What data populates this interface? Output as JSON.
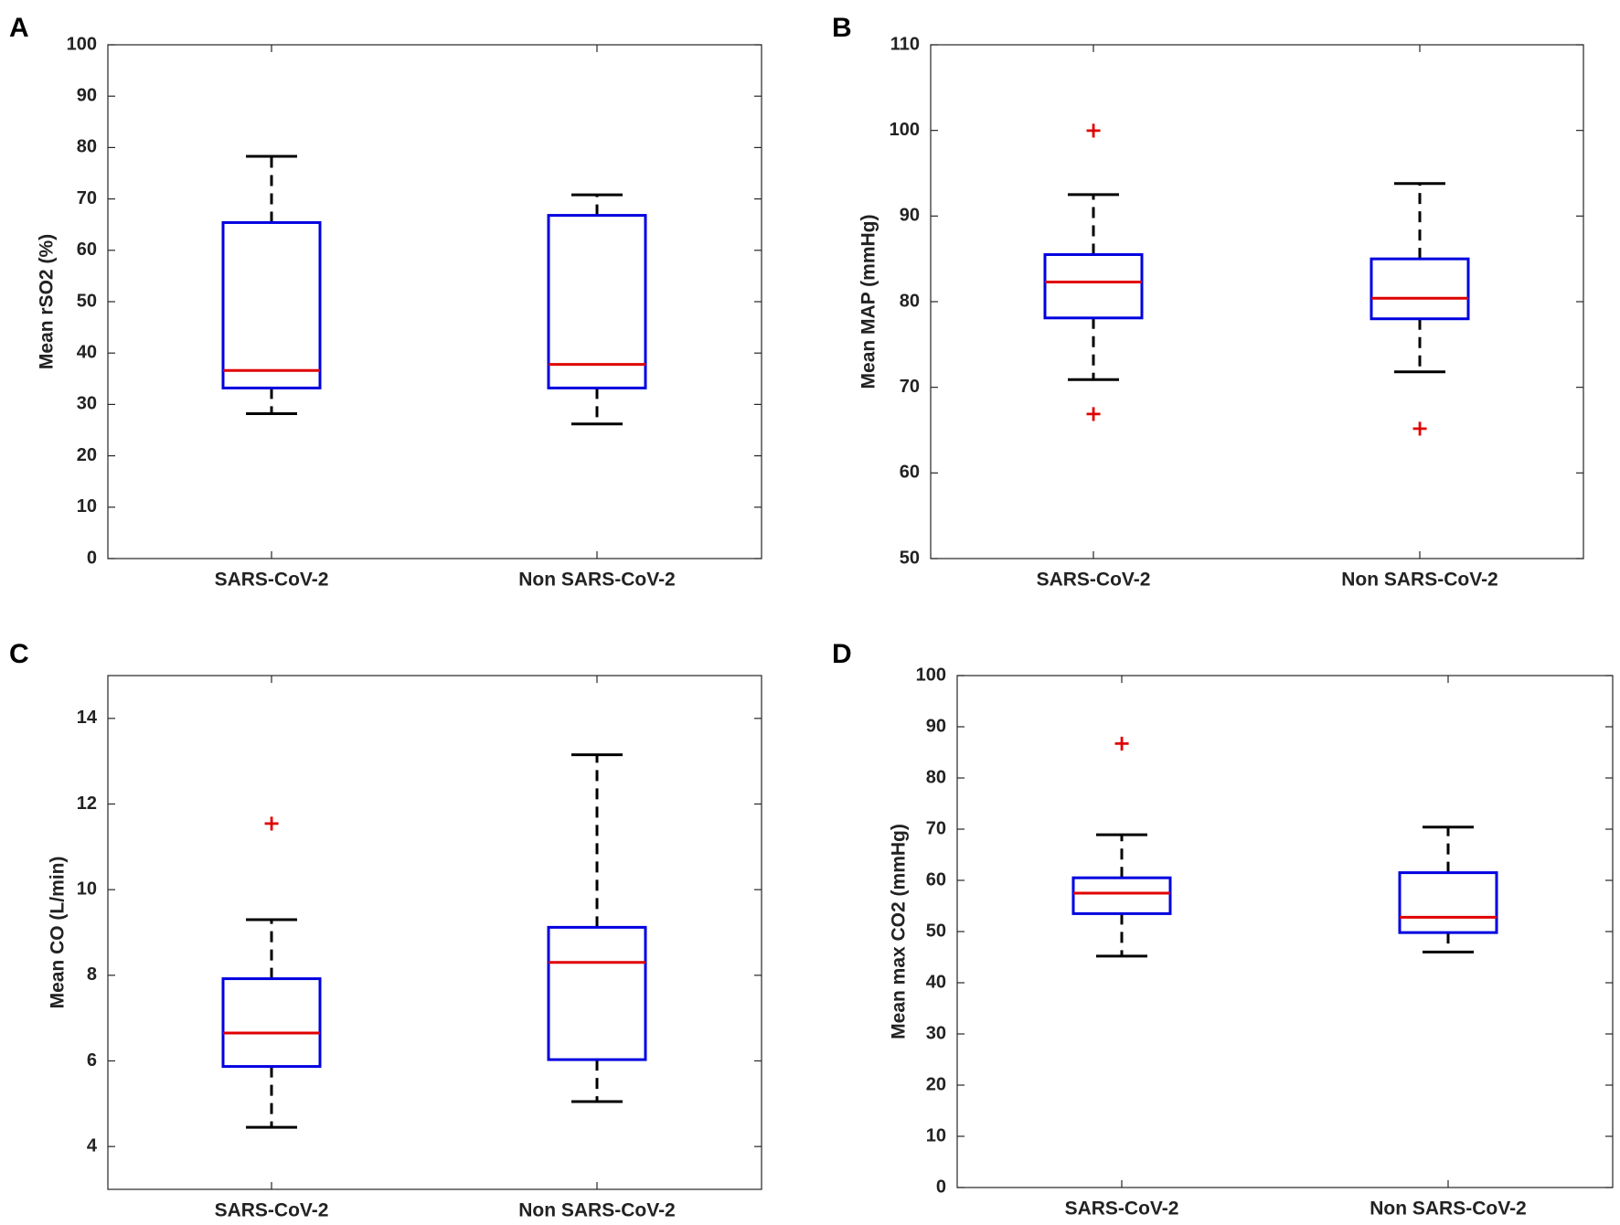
{
  "chart_data": [
    {
      "type": "box",
      "panel": "A",
      "ylabel": "Mean rSO2 (%)",
      "ylim": [
        0,
        100
      ],
      "yticks": [
        0,
        10,
        20,
        30,
        40,
        50,
        60,
        70,
        80,
        90,
        100
      ],
      "categories": [
        "SARS-CoV-2",
        "Non SARS-CoV-2"
      ],
      "boxes": [
        {
          "whisker_low": 28.2,
          "q1": 33.2,
          "median": 36.6,
          "q3": 65.4,
          "whisker_high": 78.3,
          "outliers": []
        },
        {
          "whisker_low": 26.2,
          "q1": 33.2,
          "median": 37.8,
          "q3": 66.8,
          "whisker_high": 70.8,
          "outliers": []
        }
      ]
    },
    {
      "type": "box",
      "panel": "B",
      "ylabel": "Mean MAP (mmHg)",
      "ylim": [
        50,
        110
      ],
      "yticks": [
        50,
        60,
        70,
        80,
        90,
        100,
        110
      ],
      "categories": [
        "SARS-CoV-2",
        "Non SARS-CoV-2"
      ],
      "boxes": [
        {
          "whisker_low": 70.9,
          "q1": 78.1,
          "median": 82.3,
          "q3": 85.5,
          "whisker_high": 92.5,
          "outliers": [
            100,
            66.9
          ]
        },
        {
          "whisker_low": 71.8,
          "q1": 78.0,
          "median": 80.4,
          "q3": 85.0,
          "whisker_high": 93.8,
          "outliers": [
            65.2
          ]
        }
      ]
    },
    {
      "type": "box",
      "panel": "C",
      "ylabel": "Mean CO (L/min)",
      "ylim": [
        3,
        15
      ],
      "yticks": [
        4,
        6,
        8,
        10,
        12,
        14
      ],
      "categories": [
        "SARS-CoV-2",
        "Non SARS-CoV-2"
      ],
      "boxes": [
        {
          "whisker_low": 4.45,
          "q1": 5.87,
          "median": 6.65,
          "q3": 7.92,
          "whisker_high": 9.3,
          "outliers": [
            11.55
          ]
        },
        {
          "whisker_low": 5.05,
          "q1": 6.03,
          "median": 8.3,
          "q3": 9.12,
          "whisker_high": 13.15,
          "outliers": []
        }
      ]
    },
    {
      "type": "box",
      "panel": "D",
      "ylabel": "Mean max CO2 (mmHg)",
      "ylim": [
        0,
        100
      ],
      "yticks": [
        0,
        10,
        20,
        30,
        40,
        50,
        60,
        70,
        80,
        90,
        100
      ],
      "categories": [
        "SARS-CoV-2",
        "Non SARS-CoV-2"
      ],
      "boxes": [
        {
          "whisker_low": 45.2,
          "q1": 53.5,
          "median": 57.5,
          "q3": 60.5,
          "whisker_high": 68.9,
          "outliers": [
            86.8
          ]
        },
        {
          "whisker_low": 46.0,
          "q1": 49.8,
          "median": 52.8,
          "q3": 61.5,
          "whisker_high": 70.4,
          "outliers": []
        }
      ]
    }
  ],
  "colors": {
    "box": "#0000e0",
    "median": "#e00000",
    "whisker": "#000000",
    "outlier": "#e00000"
  }
}
